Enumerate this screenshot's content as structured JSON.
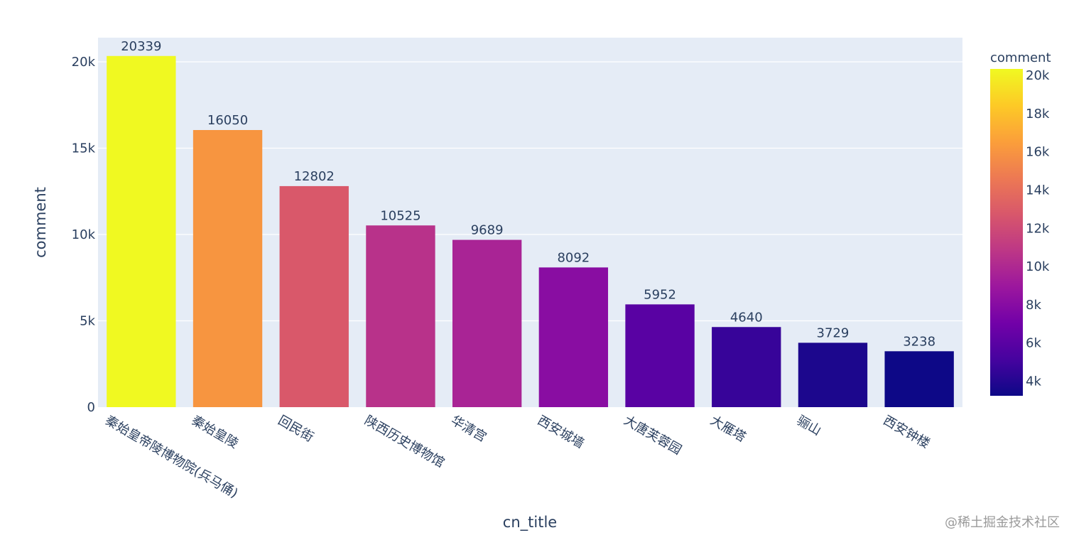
{
  "chart_data": {
    "type": "bar",
    "xlabel": "cn_title",
    "ylabel": "comment",
    "categories": [
      "秦始皇帝陵博物院(兵马俑)",
      "秦始皇陵",
      "回民街",
      "陕西历史博物馆",
      "华清宫",
      "西安城墙",
      "大唐芙蓉园",
      "大雁塔",
      "骊山",
      "西安钟楼"
    ],
    "values": [
      20339,
      16050,
      12802,
      10525,
      9689,
      8092,
      5952,
      4640,
      3729,
      3238
    ],
    "data_labels": [
      "20339",
      "16050",
      "12802",
      "10525",
      "9689",
      "8092",
      "5952",
      "4640",
      "3729",
      "3238"
    ],
    "ylim": [
      0,
      21400
    ],
    "yticks": [
      0,
      5000,
      10000,
      15000,
      20000
    ],
    "ytick_labels": [
      "0",
      "5k",
      "10k",
      "15k",
      "20k"
    ],
    "grid": true,
    "colorbar": {
      "title": "comment",
      "range": [
        3238,
        20339
      ],
      "ticks": [
        4000,
        6000,
        8000,
        10000,
        12000,
        14000,
        16000,
        18000,
        20000
      ],
      "tick_labels": [
        "4k",
        "6k",
        "8k",
        "10k",
        "12k",
        "14k",
        "16k",
        "18k",
        "20k"
      ],
      "colorscale": [
        "#0d0887",
        "#46039f",
        "#7201a8",
        "#9c179e",
        "#bd3786",
        "#d8576b",
        "#ed7953",
        "#fb9f3a",
        "#fdca26",
        "#f0f921"
      ]
    },
    "plot_bg": "#e5ecf6",
    "grid_color": "#ffffff",
    "text_color": "#2a3f5f"
  },
  "watermark": "@稀土掘金技术社区"
}
